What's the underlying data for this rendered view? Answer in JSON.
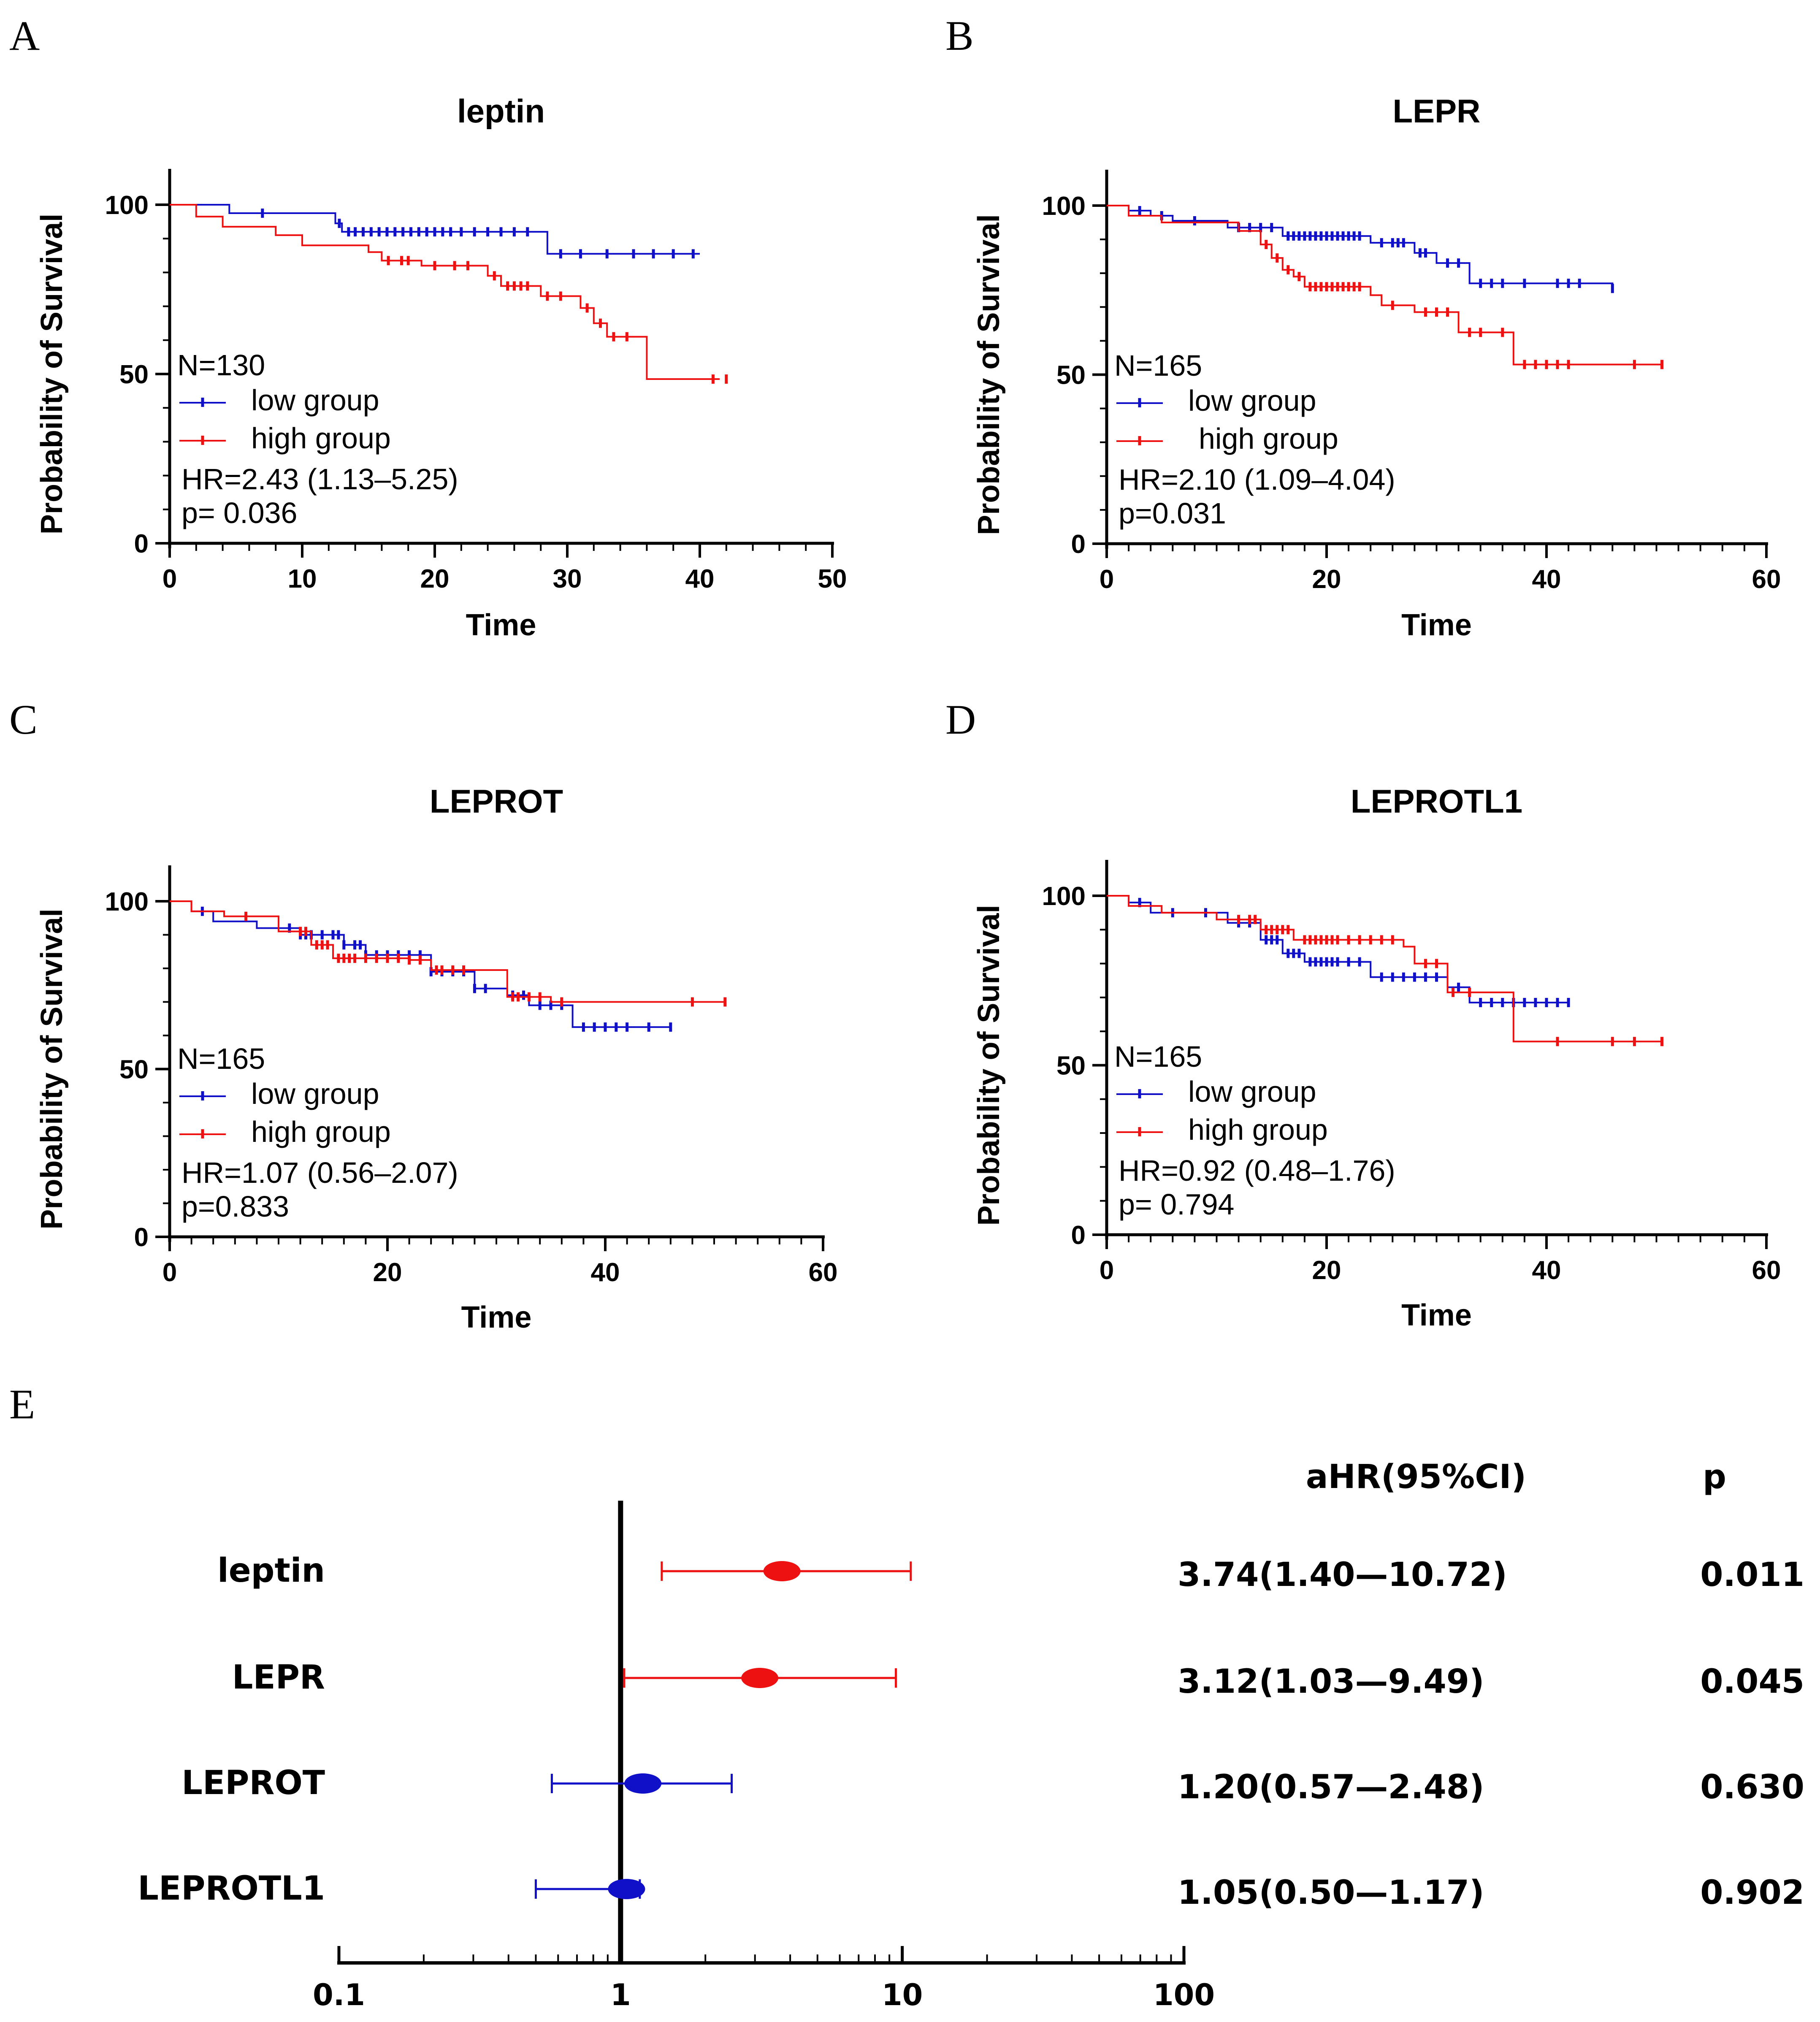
{
  "colors": {
    "low": "#1010c8",
    "high": "#ee1111",
    "axis": "#000000"
  },
  "chart_data": [
    {
      "panel": "A",
      "type": "line",
      "title": "leptin",
      "xlabel": "Time",
      "ylabel": "Probability of Survival",
      "xlim": [
        0,
        50
      ],
      "xticks": [
        0,
        10,
        20,
        30,
        40,
        50
      ],
      "ylim": [
        0,
        100
      ],
      "yticks": [
        0,
        50,
        100
      ],
      "annotations": {
        "n": "N=130",
        "hr": "HR=2.43 (1.13–5.25)",
        "p": "p= 0.036"
      },
      "legend": [
        "low group",
        "high group"
      ],
      "series": [
        {
          "name": "low group",
          "color": "low",
          "x": [
            0,
            4.5,
            12.5,
            13,
            28.5,
            40
          ],
          "y": [
            100,
            97.5,
            94.5,
            92,
            85.5,
            85.5
          ],
          "censor_x": [
            7,
            12.8,
            13.5,
            14,
            14.6,
            15.2,
            15.8,
            16.4,
            17,
            17.6,
            18.2,
            18.8,
            19.4,
            20,
            20.6,
            21.2,
            22,
            23,
            24,
            25,
            26,
            27,
            29.5,
            31,
            33,
            35,
            36.5,
            38,
            39.5
          ]
        },
        {
          "name": "high group",
          "color": "high",
          "x": [
            0,
            2,
            4,
            8,
            10,
            15,
            16,
            19,
            24,
            25,
            28,
            31,
            32,
            33,
            36,
            41.5
          ],
          "y": [
            100,
            96.5,
            93.5,
            91,
            88,
            86,
            83.5,
            82,
            79,
            76,
            73,
            69.5,
            65,
            61,
            48.5,
            48.5
          ],
          "censor_x": [
            16.5,
            17.5,
            18,
            20,
            21.5,
            22.5,
            24.5,
            25.5,
            26,
            26.5,
            27,
            28.5,
            29.5,
            31.5,
            32.5,
            33.5,
            34.5,
            41,
            42
          ]
        }
      ]
    },
    {
      "panel": "B",
      "type": "line",
      "title": "LEPR",
      "xlabel": "Time",
      "ylabel": "Probability of Survival",
      "xlim": [
        0,
        60
      ],
      "xticks": [
        0,
        20,
        40,
        60
      ],
      "ylim": [
        0,
        100
      ],
      "yticks": [
        0,
        50,
        100
      ],
      "annotations": {
        "n": "N=165",
        "hr": "HR=2.10 (1.09–4.04)",
        "p": "p=0.031"
      },
      "legend": [
        "low group",
        "high group"
      ],
      "series": [
        {
          "name": "low group",
          "color": "low",
          "x": [
            0,
            2,
            4,
            6,
            11,
            16,
            24,
            28,
            30,
            33,
            46
          ],
          "y": [
            100,
            98.5,
            97,
            95.5,
            93.5,
            91,
            89,
            86,
            83,
            77,
            75.5
          ],
          "censor_x": [
            3,
            5,
            8,
            12,
            13,
            14,
            15,
            16.5,
            17,
            17.5,
            18,
            18.5,
            19,
            19.5,
            20,
            20.5,
            21,
            21.5,
            22,
            22.5,
            23,
            25,
            26,
            26.5,
            27,
            28.5,
            29,
            31,
            32,
            34,
            35,
            36,
            38,
            41,
            42,
            43,
            46
          ]
        },
        {
          "name": "high group",
          "color": "high",
          "x": [
            0,
            2,
            5,
            12,
            14,
            15,
            16,
            17,
            18,
            24,
            25,
            28,
            32,
            37,
            50.5
          ],
          "y": [
            100,
            97,
            95,
            92.5,
            88.5,
            84.5,
            81,
            79,
            76,
            73.5,
            70.5,
            68.5,
            62.5,
            53,
            53
          ],
          "censor_x": [
            14.5,
            15.5,
            16.5,
            17.5,
            18.5,
            19,
            19.5,
            20,
            20.5,
            21,
            21.5,
            22,
            22.5,
            23,
            26,
            29,
            30,
            31,
            33,
            34,
            36,
            38,
            39,
            40,
            41,
            42,
            48,
            50.5
          ]
        }
      ]
    },
    {
      "panel": "C",
      "type": "line",
      "title": "LEPROT",
      "xlabel": "Time",
      "ylabel": "Probability of Survival",
      "xlim": [
        0,
        60
      ],
      "xticks": [
        0,
        20,
        40,
        60
      ],
      "ylim": [
        0,
        100
      ],
      "yticks": [
        0,
        50,
        100
      ],
      "annotations": {
        "n": "N=165",
        "hr": "HR=1.07 (0.56–2.07)",
        "p": "p=0.833"
      },
      "legend": [
        "low group",
        "high group"
      ],
      "series": [
        {
          "name": "low group",
          "color": "low",
          "x": [
            0,
            2,
            4,
            8,
            12,
            16,
            18,
            24,
            28,
            31,
            33,
            37,
            46
          ],
          "y": [
            100,
            97,
            94,
            92,
            90,
            87,
            84,
            79,
            74,
            72,
            69,
            62.5,
            62.5
          ],
          "censor_x": [
            3,
            11,
            12,
            12.5,
            13,
            14,
            15,
            15.5,
            16,
            17,
            17.5,
            18,
            19,
            20,
            21,
            22,
            23,
            24,
            25,
            26,
            27,
            28,
            29,
            31.5,
            32.5,
            34,
            35,
            36,
            38,
            39,
            40,
            41,
            42,
            44,
            46
          ]
        },
        {
          "name": "high group",
          "color": "high",
          "x": [
            0,
            2,
            5,
            10,
            13,
            15,
            22,
            24,
            31,
            35,
            51
          ],
          "y": [
            100,
            97,
            95.5,
            91,
            87,
            83,
            82.5,
            79.5,
            71.5,
            70,
            70
          ],
          "censor_x": [
            7,
            12,
            12.5,
            13.5,
            14,
            14.5,
            15.5,
            16,
            16.5,
            17,
            18,
            19,
            20,
            21,
            22,
            23,
            24.5,
            25,
            26,
            27,
            31.5,
            32,
            33,
            34,
            36,
            48,
            51
          ]
        }
      ]
    },
    {
      "panel": "D",
      "type": "line",
      "title": "LEPROTL1",
      "xlabel": "Time",
      "ylabel": "Probability of Survival",
      "xlim": [
        0,
        60
      ],
      "xticks": [
        0,
        20,
        40,
        60
      ],
      "ylim": [
        0,
        100
      ],
      "yticks": [
        0,
        50,
        100
      ],
      "annotations": {
        "n": "N=165",
        "hr": "HR=0.92 (0.48–1.76)",
        "p": "p= 0.794"
      },
      "legend": [
        "low group",
        "high group"
      ],
      "series": [
        {
          "name": "low group",
          "color": "low",
          "x": [
            0,
            2,
            4,
            11,
            14,
            16,
            18,
            24,
            31,
            33,
            42
          ],
          "y": [
            100,
            98,
            95,
            92,
            87,
            83,
            80.5,
            76,
            73,
            68.5,
            68.5
          ],
          "censor_x": [
            3,
            6,
            9,
            12,
            13,
            14.5,
            15,
            15.5,
            16.5,
            17,
            17.5,
            18.5,
            19,
            19.5,
            20,
            20.5,
            21,
            22,
            23,
            25,
            26,
            27,
            28,
            29,
            30,
            32,
            34,
            35,
            36,
            37,
            38,
            39,
            40,
            41,
            42
          ]
        },
        {
          "name": "high group",
          "color": "high",
          "x": [
            0,
            2,
            5,
            10,
            14,
            17,
            27,
            28,
            31,
            37,
            50.5
          ],
          "y": [
            100,
            97,
            95,
            93,
            90,
            87,
            85,
            80,
            71.5,
            57,
            57
          ],
          "censor_x": [
            12,
            13,
            13.5,
            14.5,
            15,
            15.5,
            16,
            16.5,
            18,
            18.5,
            19,
            19.5,
            20,
            20.5,
            21,
            22,
            23,
            24,
            25,
            26,
            29,
            30,
            31.5,
            33,
            41,
            46,
            48,
            50.5
          ]
        }
      ]
    },
    {
      "panel": "E",
      "type": "scatter",
      "subtype": "forest",
      "xscale": "log",
      "xlim": [
        0.1,
        100
      ],
      "xticks": [
        0.1,
        1,
        10,
        100
      ],
      "xtick_labels": [
        "0.1",
        "1",
        "10",
        "100"
      ],
      "col_headers": [
        "aHR(95%CI)",
        "p"
      ],
      "rows": [
        {
          "label": "leptin",
          "ahr": 3.74,
          "lo": 1.4,
          "hi": 10.72,
          "ci_text": "3.74(1.40—10.72)",
          "p": "0.011",
          "color": "high"
        },
        {
          "label": "LEPR",
          "ahr": 3.12,
          "lo": 1.03,
          "hi": 9.49,
          "ci_text": "3.12(1.03—9.49)",
          "p": "0.045",
          "color": "high"
        },
        {
          "label": "LEPROT",
          "ahr": 1.2,
          "lo": 0.57,
          "hi": 2.48,
          "ci_text": "1.20(0.57—2.48)",
          "p": "0.630",
          "color": "low"
        },
        {
          "label": "LEPROTL1",
          "ahr": 1.05,
          "lo": 0.5,
          "hi": 1.17,
          "ci_text": "1.05(0.50—1.17)",
          "p": "0.902",
          "color": "low"
        }
      ]
    }
  ]
}
